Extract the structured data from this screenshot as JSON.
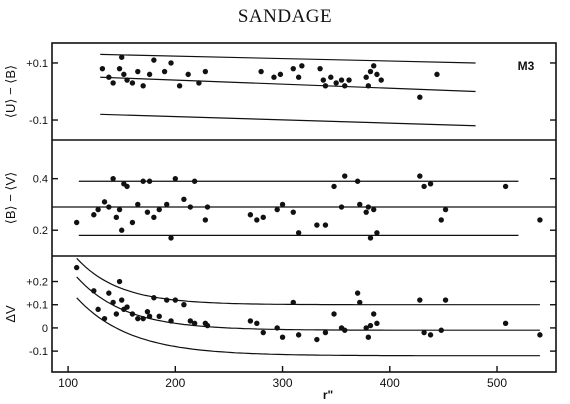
{
  "header": {
    "title": "SANDAGE"
  },
  "chart_data": [
    {
      "type": "scatter",
      "panel": "top",
      "annotation": "M3",
      "ylabel": "⟨U⟩ − ⟨B⟩",
      "ylim": [
        -0.17,
        0.17
      ],
      "yticks": [
        0.1,
        -0.1
      ],
      "ytick_labels": [
        "+0.1",
        "-0.1"
      ],
      "xlim": [
        85,
        555
      ],
      "points": {
        "x": [
          132,
          138,
          142,
          148,
          150,
          152,
          155,
          160,
          165,
          170,
          176,
          180,
          190,
          196,
          204,
          212,
          222,
          228,
          280,
          292,
          298,
          310,
          315,
          318,
          335,
          338,
          340,
          345,
          350,
          355,
          358,
          362,
          378,
          380,
          382,
          385,
          388,
          392,
          428,
          444
        ],
        "y": [
          0.08,
          0.05,
          0.03,
          0.08,
          0.12,
          0.06,
          0.04,
          0.03,
          0.07,
          0.02,
          0.06,
          0.11,
          0.07,
          0.1,
          0.02,
          0.06,
          0.03,
          0.07,
          0.07,
          0.05,
          0.06,
          0.08,
          0.05,
          0.09,
          0.08,
          0.04,
          0.02,
          0.05,
          0.03,
          0.04,
          0.02,
          0.04,
          0.05,
          0.02,
          0.07,
          0.09,
          0.06,
          0.04,
          -0.02,
          0.06
        ]
      },
      "lines": [
        {
          "x": [
            130,
            480
          ],
          "y": [
            0.13,
            0.1
          ]
        },
        {
          "x": [
            130,
            480
          ],
          "y": [
            0.05,
            0.0
          ]
        },
        {
          "x": [
            130,
            480
          ],
          "y": [
            -0.08,
            -0.12
          ]
        }
      ]
    },
    {
      "type": "scatter",
      "panel": "middle",
      "ylabel": "⟨B⟩ − ⟨V⟩",
      "ylim": [
        0.1,
        0.55
      ],
      "yticks": [
        0.4,
        0.2
      ],
      "ytick_labels": [
        "0.4",
        "0.2"
      ],
      "xlim": [
        85,
        555
      ],
      "points": {
        "x": [
          108,
          124,
          128,
          134,
          138,
          142,
          145,
          148,
          150,
          152,
          155,
          160,
          165,
          170,
          174,
          176,
          180,
          185,
          192,
          196,
          200,
          208,
          214,
          218,
          228,
          230,
          270,
          276,
          282,
          295,
          300,
          310,
          315,
          332,
          340,
          348,
          355,
          358,
          370,
          372,
          378,
          380,
          382,
          385,
          388,
          428,
          432,
          438,
          448,
          452,
          508,
          540
        ],
        "y": [
          0.23,
          0.26,
          0.28,
          0.31,
          0.29,
          0.4,
          0.25,
          0.28,
          0.2,
          0.38,
          0.37,
          0.23,
          0.3,
          0.39,
          0.27,
          0.39,
          0.25,
          0.28,
          0.3,
          0.17,
          0.4,
          0.32,
          0.29,
          0.39,
          0.24,
          0.29,
          0.26,
          0.24,
          0.25,
          0.28,
          0.3,
          0.27,
          0.19,
          0.22,
          0.22,
          0.37,
          0.29,
          0.41,
          0.39,
          0.3,
          0.27,
          0.29,
          0.17,
          0.28,
          0.19,
          0.41,
          0.37,
          0.38,
          0.24,
          0.28,
          0.37,
          0.24
        ]
      },
      "lines": [
        {
          "x": [
            110,
            520
          ],
          "y": [
            0.39,
            0.39
          ]
        },
        {
          "x": [
            85,
            555
          ],
          "y": [
            0.29,
            0.29
          ]
        },
        {
          "x": [
            110,
            520
          ],
          "y": [
            0.18,
            0.18
          ]
        }
      ]
    },
    {
      "type": "scatter",
      "panel": "bottom",
      "ylabel": "ΔV",
      "xlabel": "r\"",
      "ylim": [
        -0.19,
        0.31
      ],
      "yticks": [
        0.2,
        0.1,
        0,
        -0.1
      ],
      "ytick_labels": [
        "+0.2",
        "+0.1",
        "0",
        "-0.1"
      ],
      "xlim": [
        85,
        555
      ],
      "xticks": [
        100,
        200,
        300,
        400,
        500
      ],
      "xtick_labels": [
        "100",
        "200",
        "300",
        "400",
        "500"
      ],
      "points": {
        "x": [
          108,
          124,
          128,
          134,
          138,
          142,
          145,
          148,
          150,
          152,
          155,
          160,
          165,
          170,
          174,
          176,
          180,
          185,
          192,
          196,
          200,
          208,
          214,
          218,
          228,
          230,
          270,
          276,
          282,
          295,
          300,
          310,
          315,
          332,
          340,
          348,
          355,
          358,
          370,
          372,
          378,
          380,
          382,
          385,
          388,
          428,
          432,
          438,
          448,
          452,
          508,
          540
        ],
        "y": [
          0.26,
          0.16,
          0.08,
          0.04,
          0.15,
          0.11,
          0.06,
          0.2,
          0.12,
          0.08,
          0.09,
          0.06,
          0.04,
          0.04,
          0.07,
          0.05,
          0.13,
          0.05,
          0.12,
          0.03,
          0.12,
          0.1,
          0.03,
          0.02,
          0.02,
          0.01,
          0.03,
          0.02,
          -0.02,
          0.0,
          -0.04,
          0.11,
          -0.03,
          -0.05,
          -0.02,
          0.06,
          0.0,
          -0.01,
          0.15,
          0.11,
          0.0,
          -0.04,
          0.01,
          0.06,
          0.02,
          0.12,
          -0.02,
          -0.03,
          -0.01,
          0.12,
          0.02,
          -0.03
        ]
      },
      "curves": [
        {
          "asymptote": 0.1,
          "amplitude": 0.2,
          "decay": 40
        },
        {
          "asymptote": -0.01,
          "amplitude": 0.23,
          "decay": 45
        },
        {
          "asymptote": -0.12,
          "amplitude": 0.25,
          "decay": 50
        }
      ]
    }
  ]
}
